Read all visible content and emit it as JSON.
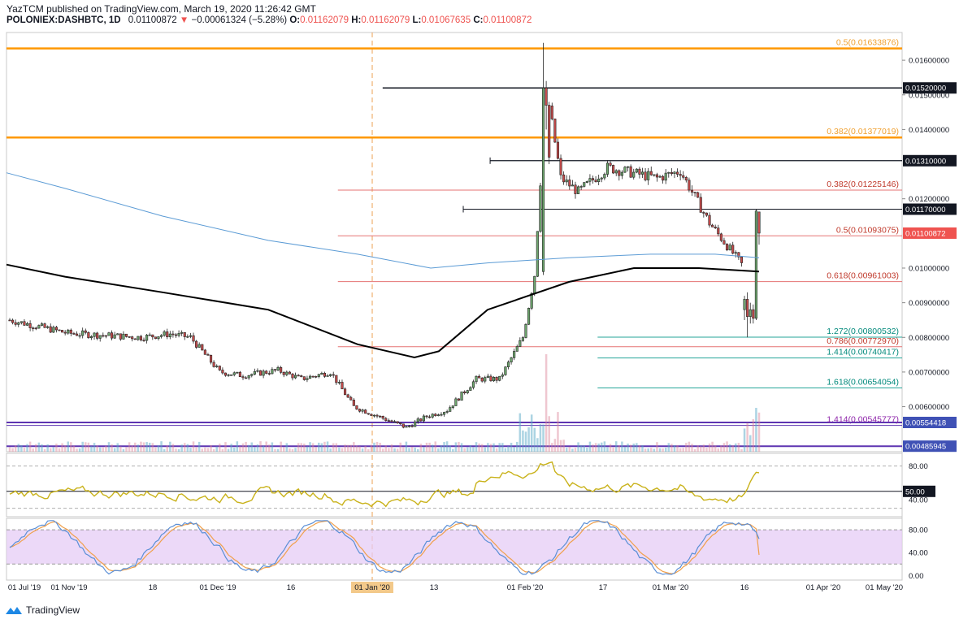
{
  "header": {
    "published": "YazTCM published on TradingView.com, March 19, 2020 11:26:42 GMT",
    "symbol": "POLONIEX:DASHBTC, 1D",
    "last": "0.01100872",
    "change": "−0.00061324 (−5.28%)",
    "o_label": "O:",
    "o": "0.01162079",
    "h_label": "H:",
    "h": "0.01162079",
    "l_label": "L:",
    "l": "0.01067635",
    "c_label": "C:",
    "c": "0.01100872"
  },
  "footer": {
    "brand": "TradingView",
    "icon": "tradingview-logo-icon"
  },
  "colors": {
    "up": "#4caf50",
    "down": "#ef5350",
    "orange": "#ff9800",
    "fib_red": "#e57373",
    "teal": "#26a69a",
    "purple": "#5e35b1",
    "ma200": "#000000",
    "ma100": "#5b9bd5",
    "rsi": "#c9b21a",
    "stoch_k": "#5b8fd6",
    "stoch_d": "#f0a04b",
    "stoch_band": "#e6ccf5"
  },
  "chart_data": {
    "type": "candlestick",
    "price_axis": {
      "ylim": [
        0.0047,
        0.0168
      ],
      "ticks": [
        "0.01600000",
        "0.01500000",
        "0.01400000",
        "0.01200000",
        "0.01000000",
        "0.00900000",
        "0.00800000",
        "0.00700000",
        "0.00600000"
      ]
    },
    "time_axis": [
      "01 Jul '19",
      "01 Nov '19",
      "18",
      "01 Dec '19",
      "16",
      "01 Jan '20",
      "13",
      "01 Feb '20",
      "17",
      "01 Mar '20",
      "16",
      "01 Apr '20",
      "01 May '20"
    ],
    "price_tags": [
      {
        "text": "0.01520000",
        "value": 0.0152,
        "style": "dark"
      },
      {
        "text": "0.01310000",
        "value": 0.0131,
        "style": "dark"
      },
      {
        "text": "0.01170000",
        "value": 0.0117,
        "style": "dark"
      },
      {
        "text": "0.01100872",
        "value": 0.01100872,
        "style": "red"
      },
      {
        "text": "0.00554418",
        "value": 0.00554418,
        "style": "blue"
      },
      {
        "text": "0.00485945",
        "value": 0.00485945,
        "style": "blue"
      }
    ],
    "levels": [
      {
        "label": "0.5(0.01633876)",
        "value": 0.01633876,
        "color": "orange",
        "width": 2.5,
        "start": 0.0,
        "lcolor": "#f0a030"
      },
      {
        "label": "",
        "value": 0.0152,
        "color": "dark",
        "width": 1.5,
        "start": 0.42
      },
      {
        "label": "0.382(0.01377019)",
        "value": 0.01377019,
        "color": "orange",
        "width": 2.5,
        "start": 0.0,
        "lcolor": "#f0a030"
      },
      {
        "label": "",
        "value": 0.0131,
        "color": "dark",
        "width": 1.2,
        "start": 0.54
      },
      {
        "label": "0.382(0.01225146)",
        "value": 0.01225146,
        "color": "fib_red",
        "width": 1,
        "start": 0.37,
        "lcolor": "#c0392b"
      },
      {
        "label": "",
        "value": 0.0117,
        "color": "dark",
        "width": 1,
        "start": 0.51
      },
      {
        "label": "0.5(0.01093075)",
        "value": 0.01093075,
        "color": "fib_red",
        "width": 1,
        "start": 0.37,
        "lcolor": "#c0392b"
      },
      {
        "label": "0.618(0.00961003)",
        "value": 0.00961003,
        "color": "fib_red",
        "width": 1,
        "start": 0.37,
        "lcolor": "#c0392b"
      },
      {
        "label": "1.272(0.00800532)",
        "value": 0.00800532,
        "color": "teal",
        "width": 1,
        "start": 0.66,
        "lcolor": "#00897b"
      },
      {
        "label": "0.786(0.00772970)",
        "value": 0.0077297,
        "color": "fib_red",
        "width": 1,
        "start": 0.37,
        "lcolor": "#c0392b"
      },
      {
        "label": "1.414(0.00740417)",
        "value": 0.00740417,
        "color": "teal",
        "width": 1,
        "start": 0.66,
        "lcolor": "#00897b"
      },
      {
        "label": "1.618(0.00654054)",
        "value": 0.00654054,
        "color": "teal",
        "width": 1,
        "start": 0.66,
        "lcolor": "#00897b"
      },
      {
        "label": "",
        "value": 0.00554418,
        "color": "purple",
        "width": 2,
        "start": 0.0
      },
      {
        "label": "1.414(0.00545777)",
        "value": 0.00545777,
        "color": "purple",
        "width": 1,
        "start": 0.0,
        "lcolor": "#8e24aa"
      },
      {
        "label": "",
        "value": 0.00485945,
        "color": "purple",
        "width": 2,
        "start": 0.0
      }
    ],
    "rsi": {
      "ticks": [
        "80.00",
        "50.00",
        "40.00"
      ],
      "tag": "50.00",
      "last": 72
    },
    "stoch": {
      "ticks": [
        "80.00",
        "40.00",
        "0.00"
      ],
      "last_k": 64,
      "last_d": 36
    }
  }
}
